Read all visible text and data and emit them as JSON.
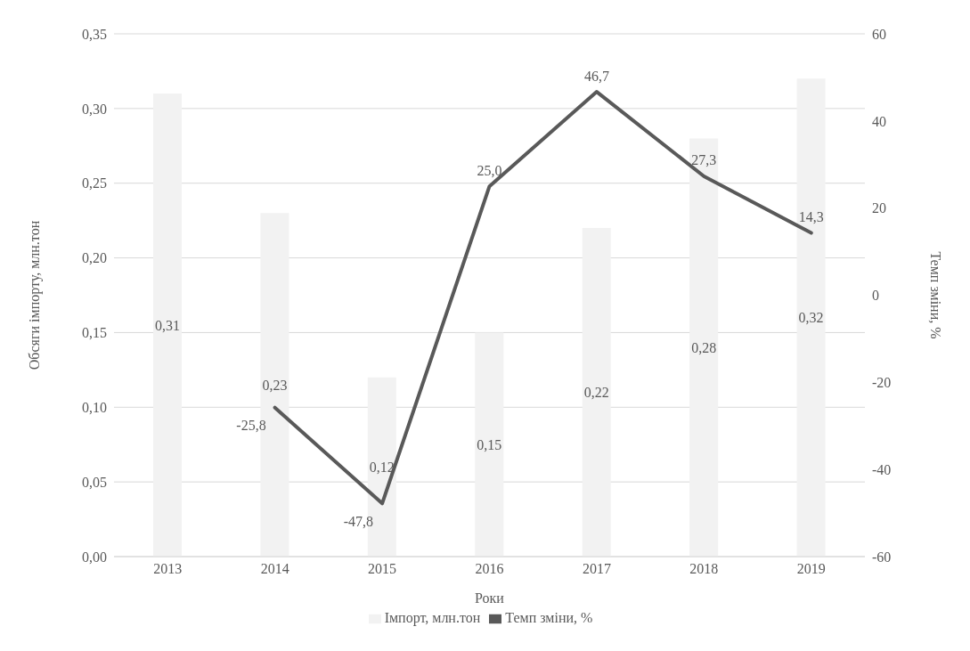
{
  "chart_data": {
    "type": "bar",
    "xlabel": "Роки",
    "ylabel": "Обсяги імпорту, млн.тон",
    "y2label": "Темп зміни, %",
    "categories": [
      "2013",
      "2014",
      "2015",
      "2016",
      "2017",
      "2018",
      "2019"
    ],
    "series": [
      {
        "name": "Імпорт, млн.тон",
        "color": "#f2f2f2",
        "values": [
          0.31,
          0.23,
          0.12,
          0.15,
          0.22,
          0.28,
          0.32
        ],
        "value_labels": [
          "0,31",
          "0,23",
          "0,12",
          "0,15",
          "0,22",
          "0,28",
          "0,32"
        ]
      },
      {
        "name": "Темп зміни, %",
        "type": "line",
        "axis": "y2",
        "color": "#595959",
        "marker": "none",
        "line_style": "solid",
        "values": [
          null,
          -25.8,
          -47.8,
          25.0,
          46.7,
          27.3,
          14.3
        ],
        "value_labels": [
          null,
          "-25,8",
          "-47,8",
          "25,0",
          "46,7",
          "27,3",
          "14,3"
        ]
      }
    ],
    "ylim": [
      0,
      0.35
    ],
    "yticks": [
      {
        "value": 0,
        "label": "0,00"
      },
      {
        "value": 0.05,
        "label": "0,05"
      },
      {
        "value": 0.1,
        "label": "0,10"
      },
      {
        "value": 0.15,
        "label": "0,15"
      },
      {
        "value": 0.2,
        "label": "0,20"
      },
      {
        "value": 0.25,
        "label": "0,25"
      },
      {
        "value": 0.3,
        "label": "0,30"
      },
      {
        "value": 0.35,
        "label": "0,35"
      }
    ],
    "y2lim": [
      -60,
      60
    ],
    "y2ticks": [
      -60,
      -40,
      -20,
      0,
      20,
      40,
      60
    ],
    "grid": "y",
    "legend": "bottom"
  }
}
